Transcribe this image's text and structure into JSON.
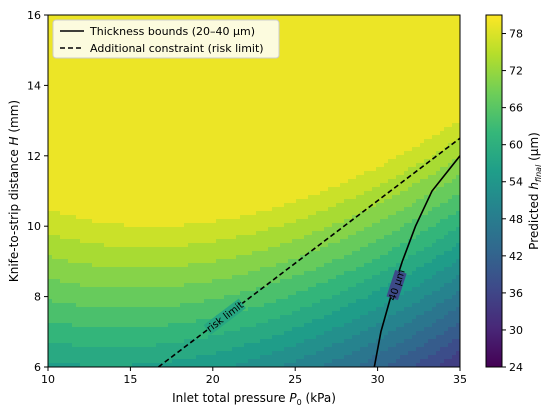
{
  "chart_data": {
    "type": "contour",
    "x": {
      "label_prefix": "Inlet total pressure ",
      "label_var": "P",
      "label_sub": "0",
      "label_suffix": " (kPa)",
      "range": [
        10,
        35
      ],
      "ticks": [
        10,
        15,
        20,
        25,
        30,
        35
      ]
    },
    "y": {
      "label_prefix": "Knife-to-strip distance ",
      "label_var": "H",
      "label_suffix": " (mm)",
      "range": [
        6,
        16
      ],
      "ticks": [
        6,
        8,
        10,
        12,
        14,
        16
      ]
    },
    "colorbar": {
      "label_prefix": "Predicted ",
      "label_var": "h",
      "label_sub": "final",
      "label_suffix": " (μm)",
      "range": [
        24,
        81
      ],
      "ticks": [
        24,
        30,
        36,
        42,
        48,
        54,
        60,
        66,
        72,
        78
      ],
      "colormap": [
        "#440154",
        "#482878",
        "#3e4989",
        "#31688e",
        "#26828e",
        "#1f9e89",
        "#35b779",
        "#6ece58",
        "#b5de2b",
        "#fde725"
      ]
    },
    "contour_levels": [
      24,
      27,
      30,
      33,
      36,
      39,
      42,
      45,
      48,
      51,
      54,
      57,
      60,
      63,
      66,
      69,
      72,
      75,
      78,
      81
    ],
    "field_model": {
      "base": 64.5,
      "p_peak": 13.5,
      "p_scale": 0.052,
      "h_slope": 5.0,
      "h_ref": 6,
      "h_quad": 0.06,
      "h_quad_ref": 14,
      "p_h_coupling": 0.3
    },
    "lines": [
      {
        "name": "Thickness bounds (20–40 μm)",
        "style": "solid",
        "color": "#000000",
        "label": "40 μm",
        "points": [
          [
            29.8,
            6
          ],
          [
            30.2,
            7
          ],
          [
            30.8,
            8
          ],
          [
            31.5,
            9
          ],
          [
            32.3,
            10
          ],
          [
            33.3,
            11
          ],
          [
            35,
            12
          ]
        ]
      },
      {
        "name": "Additional constraint (risk limit)",
        "style": "dashed",
        "color": "#000000",
        "label": "risk limit",
        "points": [
          [
            16.7,
            6
          ],
          [
            35,
            12.5
          ]
        ]
      }
    ],
    "legend_position": "top-left"
  }
}
